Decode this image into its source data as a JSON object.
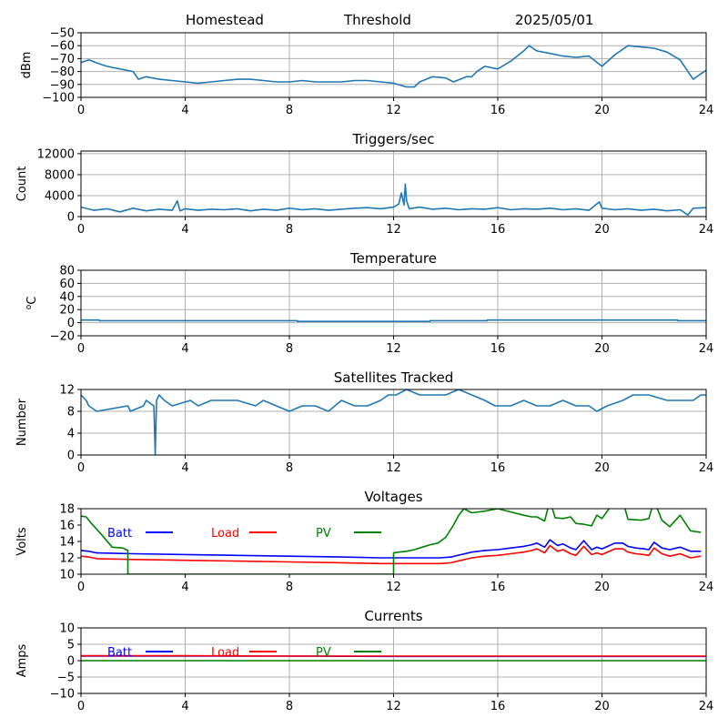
{
  "header": {
    "site": "Homestead",
    "mode": "Threshold",
    "date": "2025/05/01"
  },
  "colors": {
    "series": "#1f77b4",
    "grid": "#b0b0b0",
    "batt": "#0000ff",
    "load": "#ff0000",
    "pv": "#008000"
  },
  "chart_data": [
    {
      "type": "line",
      "title": "",
      "ylabel": "dBm",
      "xlim": [
        0,
        24
      ],
      "ylim": [
        -100,
        -50
      ],
      "xticks": [
        0,
        4,
        8,
        12,
        16,
        20,
        24
      ],
      "yticks": [
        -100,
        -90,
        -80,
        -70,
        -60,
        -50
      ],
      "grid": true,
      "series": [
        {
          "x": [
            0,
            0.3,
            0.7,
            1,
            1.5,
            2,
            2.2,
            2.5,
            3,
            3.5,
            4,
            4.5,
            5,
            5.5,
            6,
            6.5,
            7,
            7.5,
            8,
            8.5,
            9,
            9.5,
            10,
            10.5,
            11,
            11.5,
            12,
            12.5,
            12.8,
            13,
            13.5,
            14,
            14.3,
            14.8,
            15,
            15.2,
            15.5,
            16,
            16.5,
            17,
            17.2,
            17.5,
            18,
            18.5,
            19,
            19.5,
            20,
            20.5,
            21,
            21.5,
            22,
            22.5,
            23,
            23.5,
            24
          ],
          "y": [
            -73,
            -71,
            -74,
            -76,
            -78,
            -80,
            -86,
            -84,
            -86,
            -87,
            -88,
            -89,
            -88,
            -87,
            -86,
            -86,
            -87,
            -88,
            -88,
            -87,
            -88,
            -88,
            -88,
            -87,
            -87,
            -88,
            -89,
            -92,
            -92,
            -88,
            -84,
            -85,
            -88,
            -84,
            -84,
            -80,
            -76,
            -78,
            -72,
            -64,
            -60,
            -64,
            -66,
            -68,
            -69,
            -68,
            -76,
            -67,
            -60,
            -61,
            -62,
            -65,
            -71,
            -86,
            -79
          ]
        }
      ]
    },
    {
      "type": "line",
      "title": "Triggers/sec",
      "ylabel": "Count",
      "xlim": [
        0,
        24
      ],
      "ylim": [
        0,
        12500
      ],
      "xticks": [
        0,
        4,
        8,
        12,
        16,
        20,
        24
      ],
      "yticks": [
        0,
        4000,
        8000,
        12000
      ],
      "grid": true,
      "series": [
        {
          "x": [
            0,
            0.5,
            1,
            1.5,
            2,
            2.5,
            3,
            3.5,
            3.7,
            3.8,
            4,
            4.5,
            5,
            5.5,
            6,
            6.5,
            7,
            7.5,
            8,
            8.5,
            9,
            9.5,
            10,
            10.5,
            11,
            11.5,
            12,
            12.2,
            12.3,
            12.4,
            12.45,
            12.5,
            12.6,
            13,
            13.5,
            14,
            14.5,
            15,
            15.5,
            16,
            16.5,
            17,
            17.5,
            18,
            18.5,
            19,
            19.5,
            19.9,
            20,
            20.5,
            21,
            21.5,
            22,
            22.5,
            23,
            23.3,
            23.5,
            24
          ],
          "y": [
            1800,
            1200,
            1500,
            900,
            1600,
            1100,
            1400,
            1200,
            3000,
            1100,
            1500,
            1200,
            1400,
            1300,
            1500,
            1100,
            1400,
            1200,
            1600,
            1300,
            1500,
            1200,
            1400,
            1600,
            1700,
            1500,
            1800,
            2400,
            4500,
            2200,
            6200,
            3000,
            1500,
            1800,
            1400,
            1600,
            1300,
            1500,
            1400,
            1700,
            1300,
            1500,
            1400,
            1600,
            1300,
            1500,
            1200,
            2800,
            1600,
            1300,
            1500,
            1200,
            1400,
            1100,
            1300,
            300,
            1600,
            1700
          ]
        }
      ]
    },
    {
      "type": "line",
      "title": "Temperature",
      "ylabel": "°C",
      "xlim": [
        0,
        24
      ],
      "ylim": [
        -20,
        80
      ],
      "xticks": [
        0,
        4,
        8,
        12,
        16,
        20,
        24
      ],
      "yticks": [
        -20,
        0,
        20,
        40,
        60,
        80
      ],
      "grid": true,
      "series": [
        {
          "x": [
            0,
            0.7,
            0.7,
            8.3,
            8.3,
            13.4,
            13.4,
            15.6,
            15.6,
            22.9,
            22.9,
            24
          ],
          "y": [
            4,
            4,
            3,
            3,
            2,
            2,
            3,
            3,
            4,
            4,
            3,
            3
          ]
        }
      ]
    },
    {
      "type": "line",
      "title": "Satellites Tracked",
      "ylabel": "Number",
      "xlim": [
        0,
        24
      ],
      "ylim": [
        0,
        12
      ],
      "xticks": [
        0,
        4,
        8,
        12,
        16,
        20,
        24
      ],
      "yticks": [
        0,
        4,
        8,
        12
      ],
      "grid": true,
      "series": [
        {
          "x": [
            0,
            0.2,
            0.3,
            0.6,
            1.8,
            1.9,
            2.4,
            2.5,
            2.8,
            2.85,
            2.9,
            3.0,
            3.2,
            3.5,
            4.2,
            4.5,
            5.0,
            5.5,
            6.0,
            6.7,
            7.0,
            7.5,
            8.0,
            8.5,
            9.0,
            9.5,
            10.0,
            10.5,
            11.0,
            11.5,
            11.8,
            12.1,
            12.5,
            13.0,
            13.5,
            14.0,
            14.5,
            15.0,
            15.5,
            15.9,
            16.5,
            17.0,
            17.5,
            18.0,
            18.5,
            19.0,
            19.5,
            19.8,
            20.2,
            20.8,
            21.2,
            21.8,
            22.5,
            23.0,
            23.5,
            23.8,
            24
          ],
          "y": [
            11,
            10,
            9,
            8,
            9,
            8,
            9,
            10,
            9,
            0,
            10,
            11,
            10,
            9,
            10,
            9,
            10,
            10,
            10,
            9,
            10,
            9,
            8,
            9,
            9,
            8,
            10,
            9,
            9,
            10,
            11,
            11,
            12,
            11,
            11,
            11,
            12,
            11,
            10,
            9,
            9,
            10,
            9,
            9,
            10,
            9,
            9,
            8,
            9,
            10,
            11,
            11,
            10,
            10,
            10,
            11,
            11
          ]
        }
      ]
    },
    {
      "type": "line",
      "title": "Voltages",
      "ylabel": "Volts",
      "xlim": [
        0,
        24
      ],
      "ylim": [
        10,
        18
      ],
      "xticks": [
        0,
        4,
        8,
        12,
        16,
        20,
        24
      ],
      "yticks": [
        10,
        12,
        14,
        16,
        18
      ],
      "grid": false,
      "legend": "top-left, inside",
      "series": [
        {
          "name": "Batt",
          "color": "#0000ff",
          "x": [
            0,
            0.3,
            0.6,
            2,
            4,
            6,
            8,
            10,
            11.5,
            12,
            13,
            13.8,
            14.2,
            14.6,
            15,
            15.5,
            16,
            16.5,
            17,
            17.3,
            17.5,
            17.8,
            18,
            18.3,
            18.5,
            18.8,
            19,
            19.3,
            19.6,
            19.8,
            20,
            20.5,
            20.8,
            21,
            21.3,
            21.6,
            21.8,
            22,
            22.3,
            22.6,
            23,
            23.4,
            23.8
          ],
          "y": [
            12.9,
            12.8,
            12.6,
            12.5,
            12.4,
            12.3,
            12.2,
            12.1,
            12.0,
            12.0,
            12.0,
            12.0,
            12.1,
            12.4,
            12.7,
            12.9,
            13.0,
            13.2,
            13.4,
            13.6,
            13.8,
            13.3,
            14.2,
            13.5,
            13.7,
            13.2,
            13.0,
            14.1,
            13.0,
            13.3,
            13.1,
            13.8,
            13.8,
            13.4,
            13.2,
            13.1,
            13.0,
            13.9,
            13.2,
            13.0,
            13.3,
            12.8,
            12.8
          ]
        },
        {
          "name": "Load",
          "color": "#ff0000",
          "x": [
            0,
            0.3,
            0.6,
            2,
            4,
            6,
            8,
            10,
            11.5,
            12,
            13,
            13.8,
            14.2,
            14.6,
            15,
            15.5,
            16,
            16.5,
            17,
            17.3,
            17.5,
            17.8,
            18,
            18.3,
            18.5,
            18.8,
            19,
            19.3,
            19.6,
            19.8,
            20,
            20.5,
            20.8,
            21,
            21.3,
            21.6,
            21.8,
            22,
            22.3,
            22.6,
            23,
            23.4,
            23.8
          ],
          "y": [
            12.2,
            12.1,
            11.9,
            11.8,
            11.7,
            11.6,
            11.5,
            11.4,
            11.3,
            11.3,
            11.3,
            11.3,
            11.4,
            11.7,
            12.0,
            12.2,
            12.3,
            12.5,
            12.7,
            12.9,
            13.1,
            12.6,
            13.5,
            12.8,
            13.0,
            12.5,
            12.3,
            13.4,
            12.4,
            12.6,
            12.4,
            13.1,
            13.1,
            12.7,
            12.5,
            12.4,
            12.3,
            13.2,
            12.5,
            12.2,
            12.5,
            12.0,
            12.2
          ]
        },
        {
          "name": "PV",
          "color": "#008000",
          "x": [
            0,
            0.2,
            0.4,
            0.8,
            1.2,
            1.6,
            1.8,
            1.8,
            12.0,
            12.0,
            12.2,
            12.5,
            12.8,
            13.1,
            13.4,
            13.7,
            14.0,
            14.3,
            14.5,
            14.7,
            15.0,
            15.5,
            16,
            16.5,
            17,
            17.3,
            17.5,
            17.8,
            18,
            18.2,
            18.5,
            18.8,
            19,
            19.3,
            19.6,
            19.8,
            20,
            20.5,
            20.8,
            21.0,
            21.5,
            21.8,
            22,
            22.3,
            22.6,
            23,
            23.4,
            23.8
          ],
          "y": [
            17.1,
            17.0,
            16.2,
            14.8,
            13.3,
            13.2,
            12.9,
            10.0,
            10.0,
            12.6,
            12.7,
            12.8,
            13.0,
            13.3,
            13.6,
            13.8,
            14.5,
            16.0,
            17.2,
            18.0,
            17.5,
            17.7,
            18.0,
            17.6,
            17.2,
            17.0,
            17.0,
            16.5,
            19.0,
            16.9,
            16.8,
            17.0,
            16.2,
            16.1,
            15.9,
            17.2,
            16.8,
            19.0,
            19.0,
            16.7,
            16.6,
            16.8,
            19.0,
            16.6,
            15.8,
            17.2,
            15.3,
            15.1
          ]
        }
      ]
    },
    {
      "type": "line",
      "title": "Currents",
      "ylabel": "Amps",
      "xlim": [
        0,
        24
      ],
      "ylim": [
        -10,
        10
      ],
      "xticks": [
        0,
        4,
        8,
        12,
        16,
        20,
        24
      ],
      "yticks": [
        -10,
        -5,
        0,
        5,
        10
      ],
      "grid": true,
      "legend": "top-left, inside",
      "series": [
        {
          "name": "Batt",
          "color": "#0000ff",
          "x": [
            0,
            4,
            8,
            12,
            16,
            20,
            24
          ],
          "y": [
            1.4,
            1.4,
            1.4,
            1.3,
            1.3,
            1.3,
            1.3
          ]
        },
        {
          "name": "Load",
          "color": "#ff0000",
          "x": [
            0,
            4,
            8,
            12,
            16,
            20,
            24
          ],
          "y": [
            1.5,
            1.5,
            1.4,
            1.4,
            1.4,
            1.4,
            1.4
          ]
        },
        {
          "name": "PV",
          "color": "#008000",
          "x": [
            0,
            4,
            8,
            12,
            16,
            20,
            24
          ],
          "y": [
            0,
            0,
            0,
            0,
            0,
            0,
            0
          ]
        }
      ]
    }
  ]
}
